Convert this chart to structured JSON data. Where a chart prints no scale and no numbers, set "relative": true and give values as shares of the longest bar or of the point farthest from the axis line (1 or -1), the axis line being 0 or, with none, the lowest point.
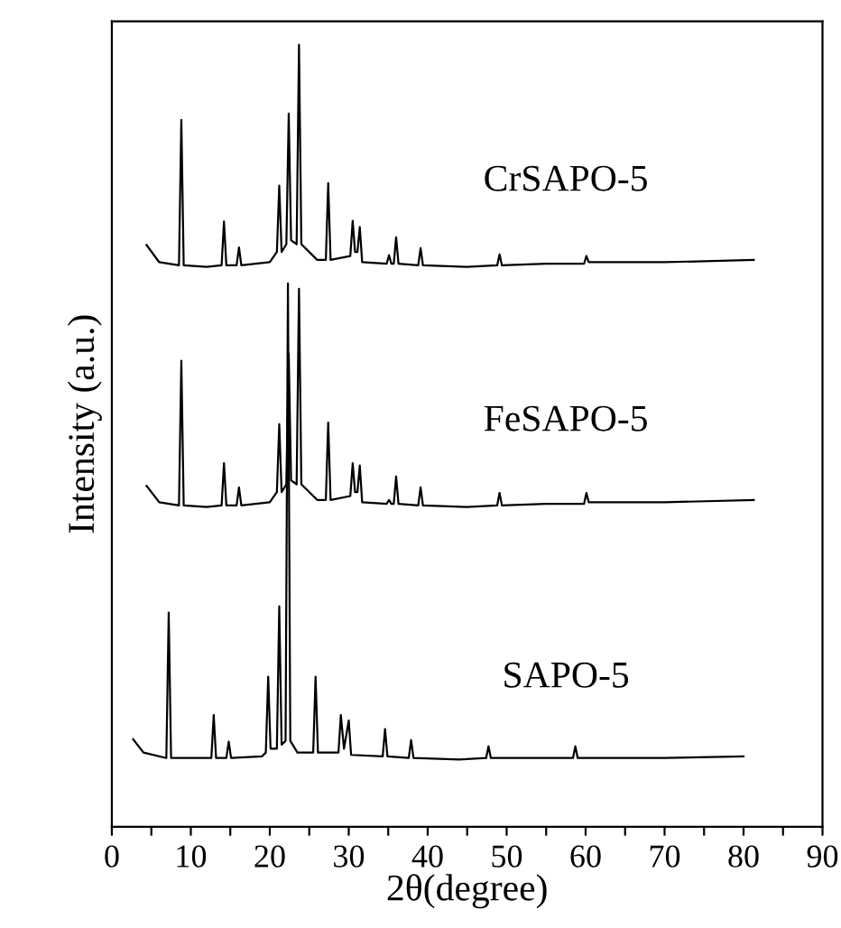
{
  "chart_data": {
    "type": "line",
    "relative": true,
    "xlabel": "2θ(degree)",
    "ylabel": "Intensity (a.u.)",
    "xlim": [
      0,
      90
    ],
    "xticks": [
      0,
      {
        "value": 5,
        "label": null
      },
      10,
      {
        "value": 15,
        "label": null
      },
      20,
      {
        "value": 25,
        "label": null
      },
      30,
      {
        "value": 35,
        "label": null
      },
      40,
      {
        "value": 45,
        "label": null
      },
      50,
      {
        "value": 55,
        "label": null
      },
      60,
      {
        "value": 65,
        "label": null
      },
      70,
      {
        "value": 75,
        "label": null
      },
      80,
      {
        "value": 85,
        "label": null
      },
      90
    ],
    "grid": false,
    "legend": false,
    "marker": "none",
    "line_style": "solid",
    "series": [
      {
        "name": "CrSAPO-5",
        "color": "#000000",
        "x": [
          4.4,
          6,
          8.5,
          8.8,
          9.1,
          12,
          13.9,
          14.2,
          14.5,
          15.8,
          16.1,
          16.4,
          20,
          20.9,
          21.2,
          21.5,
          22.1,
          22.4,
          22.7,
          23.4,
          23.7,
          24.0,
          26,
          27.1,
          27.4,
          27.7,
          30.2,
          30.5,
          30.8,
          31.1,
          31.4,
          31.7,
          34.8,
          35.1,
          35.4,
          35.7,
          36.0,
          36.3,
          38.8,
          39.1,
          39.4,
          45,
          48.8,
          49.1,
          49.4,
          55,
          59.8,
          60.1,
          60.4,
          70,
          81.3
        ],
        "values": [
          0.744,
          0.722,
          0.718,
          0.904,
          0.718,
          0.716,
          0.718,
          0.774,
          0.718,
          0.718,
          0.741,
          0.718,
          0.722,
          0.735,
          0.82,
          0.735,
          0.745,
          0.912,
          0.75,
          0.745,
          1.0,
          0.745,
          0.725,
          0.725,
          0.823,
          0.725,
          0.73,
          0.775,
          0.735,
          0.735,
          0.767,
          0.722,
          0.72,
          0.731,
          0.72,
          0.72,
          0.754,
          0.72,
          0.718,
          0.74,
          0.718,
          0.716,
          0.718,
          0.732,
          0.718,
          0.72,
          0.72,
          0.73,
          0.722,
          0.722,
          0.725
        ]
      },
      {
        "name": "FeSAPO-5",
        "color": "#000000",
        "x": [
          4.4,
          6,
          8.5,
          8.8,
          9.1,
          12,
          13.9,
          14.2,
          14.5,
          15.8,
          16.1,
          16.4,
          20,
          20.9,
          21.2,
          21.5,
          22.1,
          22.4,
          22.7,
          23.4,
          23.7,
          24.0,
          26,
          27.1,
          27.4,
          27.7,
          30.2,
          30.5,
          30.8,
          31.1,
          31.4,
          31.7,
          34.8,
          35.1,
          35.4,
          35.7,
          36.0,
          36.3,
          38.8,
          39.1,
          39.4,
          45,
          48.8,
          49.1,
          49.4,
          55,
          59.8,
          60.1,
          60.4,
          70,
          81.3
        ],
        "values": [
          0.436,
          0.415,
          0.411,
          0.596,
          0.411,
          0.409,
          0.411,
          0.465,
          0.411,
          0.411,
          0.434,
          0.411,
          0.415,
          0.428,
          0.515,
          0.428,
          0.438,
          0.605,
          0.443,
          0.438,
          0.688,
          0.438,
          0.418,
          0.418,
          0.517,
          0.418,
          0.423,
          0.465,
          0.428,
          0.428,
          0.462,
          0.415,
          0.413,
          0.418,
          0.413,
          0.413,
          0.448,
          0.413,
          0.411,
          0.434,
          0.411,
          0.409,
          0.411,
          0.427,
          0.411,
          0.413,
          0.413,
          0.427,
          0.415,
          0.415,
          0.418
        ]
      },
      {
        "name": "SAPO-5",
        "color": "#000000",
        "x": [
          2.7,
          4,
          6.9,
          7.2,
          7.5,
          10,
          12.6,
          12.9,
          13.2,
          14.5,
          14.8,
          15.1,
          19,
          19.5,
          19.8,
          20.1,
          20.9,
          21.2,
          21.5,
          22.0,
          22.3,
          22.6,
          23.5,
          25.5,
          25.8,
          26.1,
          28.7,
          29.0,
          29.4,
          30.0,
          30.3,
          34.3,
          34.6,
          34.9,
          37.6,
          37.9,
          38.2,
          44,
          47.4,
          47.7,
          48.0,
          55,
          58.4,
          58.7,
          59.0,
          70,
          80
        ],
        "values": [
          0.112,
          0.095,
          0.088,
          0.274,
          0.088,
          0.088,
          0.088,
          0.143,
          0.088,
          0.088,
          0.109,
          0.088,
          0.09,
          0.095,
          0.192,
          0.1,
          0.1,
          0.282,
          0.105,
          0.11,
          0.695,
          0.11,
          0.095,
          0.095,
          0.192,
          0.095,
          0.095,
          0.143,
          0.1,
          0.136,
          0.092,
          0.09,
          0.125,
          0.09,
          0.088,
          0.111,
          0.088,
          0.086,
          0.088,
          0.103,
          0.088,
          0.088,
          0.088,
          0.103,
          0.088,
          0.088,
          0.09
        ]
      }
    ]
  }
}
